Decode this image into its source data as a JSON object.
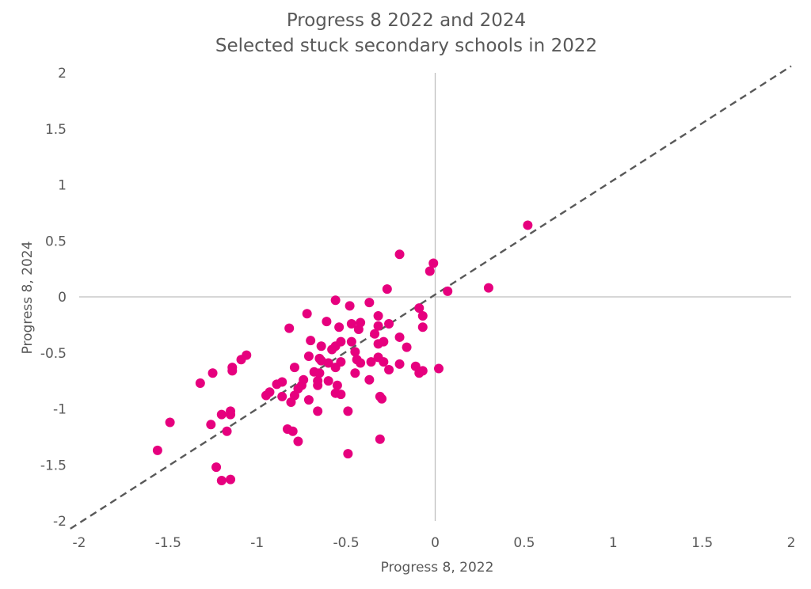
{
  "chart_data": {
    "type": "scatter",
    "title": "Progress 8 2022 and 2024",
    "subtitle": "Selected stuck secondary schools in 2022",
    "xlabel": "Progress 8, 2022",
    "ylabel": "Progress 8, 2024",
    "xlim": [
      -2,
      2
    ],
    "ylim": [
      -2,
      2
    ],
    "x_ticks": [
      "-2",
      "-1.5",
      "-1",
      "-0.5",
      "0",
      "0.5",
      "1",
      "1.5",
      "2"
    ],
    "y_ticks": [
      "-2",
      "-1.5",
      "-1",
      "-0.5",
      "0",
      "0.5",
      "1",
      "1.5",
      "2"
    ],
    "grid": false,
    "reference_line": {
      "style": "dashed",
      "color": "#595959",
      "from": [
        -2.05,
        -2.07
      ],
      "to": [
        2.0,
        2.06
      ]
    },
    "series": [
      {
        "color": "#E6007E",
        "points": [
          [
            0.52,
            0.64
          ],
          [
            0.3,
            0.08
          ],
          [
            0.07,
            0.05
          ],
          [
            0.02,
            -0.64
          ],
          [
            -0.01,
            0.3
          ],
          [
            -0.03,
            0.23
          ],
          [
            -0.07,
            -0.17
          ],
          [
            -0.07,
            -0.27
          ],
          [
            -0.07,
            -0.66
          ],
          [
            -0.09,
            -0.1
          ],
          [
            -0.09,
            -0.68
          ],
          [
            -0.11,
            -0.62
          ],
          [
            -0.16,
            -0.45
          ],
          [
            -0.2,
            0.38
          ],
          [
            -0.2,
            -0.36
          ],
          [
            -0.2,
            -0.6
          ],
          [
            -0.26,
            -0.24
          ],
          [
            -0.26,
            -0.65
          ],
          [
            -0.27,
            0.07
          ],
          [
            -0.29,
            -0.4
          ],
          [
            -0.29,
            -0.58
          ],
          [
            -0.3,
            -0.91
          ],
          [
            -0.31,
            -0.89
          ],
          [
            -0.31,
            -1.27
          ],
          [
            -0.32,
            -0.17
          ],
          [
            -0.32,
            -0.26
          ],
          [
            -0.32,
            -0.42
          ],
          [
            -0.32,
            -0.54
          ],
          [
            -0.34,
            -0.33
          ],
          [
            -0.36,
            -0.58
          ],
          [
            -0.37,
            -0.05
          ],
          [
            -0.37,
            -0.74
          ],
          [
            -0.42,
            -0.23
          ],
          [
            -0.42,
            -0.59
          ],
          [
            -0.43,
            -0.29
          ],
          [
            -0.44,
            -0.56
          ],
          [
            -0.45,
            -0.49
          ],
          [
            -0.45,
            -0.68
          ],
          [
            -0.47,
            -0.24
          ],
          [
            -0.47,
            -0.4
          ],
          [
            -0.48,
            -0.08
          ],
          [
            -0.49,
            -1.02
          ],
          [
            -0.49,
            -1.4
          ],
          [
            -0.53,
            -0.4
          ],
          [
            -0.53,
            -0.58
          ],
          [
            -0.53,
            -0.87
          ],
          [
            -0.54,
            -0.27
          ],
          [
            -0.55,
            -0.79
          ],
          [
            -0.56,
            -0.03
          ],
          [
            -0.56,
            -0.44
          ],
          [
            -0.56,
            -0.63
          ],
          [
            -0.56,
            -0.86
          ],
          [
            -0.58,
            -0.47
          ],
          [
            -0.6,
            -0.59
          ],
          [
            -0.6,
            -0.75
          ],
          [
            -0.61,
            -0.22
          ],
          [
            -0.64,
            -0.44
          ],
          [
            -0.64,
            -0.57
          ],
          [
            -0.65,
            -0.55
          ],
          [
            -0.65,
            -0.68
          ],
          [
            -0.66,
            -0.75
          ],
          [
            -0.66,
            -0.79
          ],
          [
            -0.66,
            -1.02
          ],
          [
            -0.68,
            -0.67
          ],
          [
            -0.7,
            -0.39
          ],
          [
            -0.71,
            -0.53
          ],
          [
            -0.71,
            -0.92
          ],
          [
            -0.72,
            -0.15
          ],
          [
            -0.74,
            -0.74
          ],
          [
            -0.75,
            -0.79
          ],
          [
            -0.77,
            -0.82
          ],
          [
            -0.77,
            -1.29
          ],
          [
            -0.79,
            -0.63
          ],
          [
            -0.79,
            -0.88
          ],
          [
            -0.8,
            -1.2
          ],
          [
            -0.81,
            -0.94
          ],
          [
            -0.82,
            -0.28
          ],
          [
            -0.83,
            -1.18
          ],
          [
            -0.86,
            -0.76
          ],
          [
            -0.86,
            -0.89
          ],
          [
            -0.89,
            -0.78
          ],
          [
            -0.93,
            -0.85
          ],
          [
            -0.95,
            -0.88
          ],
          [
            -1.06,
            -0.52
          ],
          [
            -1.09,
            -0.56
          ],
          [
            -1.14,
            -0.63
          ],
          [
            -1.14,
            -0.66
          ],
          [
            -1.15,
            -1.02
          ],
          [
            -1.15,
            -1.05
          ],
          [
            -1.15,
            -1.63
          ],
          [
            -1.17,
            -1.2
          ],
          [
            -1.2,
            -1.05
          ],
          [
            -1.2,
            -1.64
          ],
          [
            -1.23,
            -1.52
          ],
          [
            -1.25,
            -0.68
          ],
          [
            -1.26,
            -1.14
          ],
          [
            -1.32,
            -0.77
          ],
          [
            -1.49,
            -1.12
          ],
          [
            -1.56,
            -1.37
          ]
        ]
      }
    ]
  }
}
